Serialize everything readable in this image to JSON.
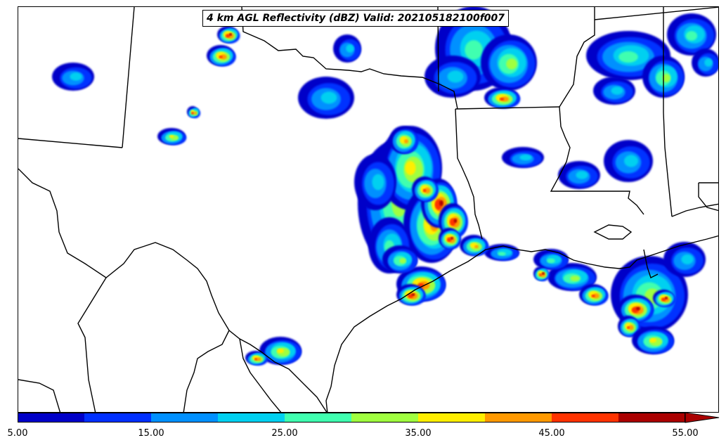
{
  "title": "4 km AGL Reflectivity (dBZ) Valid: 202105182100f007",
  "colorbar": {
    "tick_labels": [
      "5.00",
      "15.00",
      "25.00",
      "35.00",
      "45.00",
      "55.00"
    ],
    "min": 5,
    "max": 55,
    "step": 5,
    "extend": "max",
    "colors": [
      "#0000c8",
      "#0030ff",
      "#0090ff",
      "#00d0f0",
      "#40ffb0",
      "#a0ff40",
      "#ffee00",
      "#ff9900",
      "#ff3300",
      "#aa0000"
    ]
  },
  "map": {
    "region": "Texas / Louisiana Gulf Coast",
    "background": "#ffffff",
    "boundary_color": "#000000"
  }
}
